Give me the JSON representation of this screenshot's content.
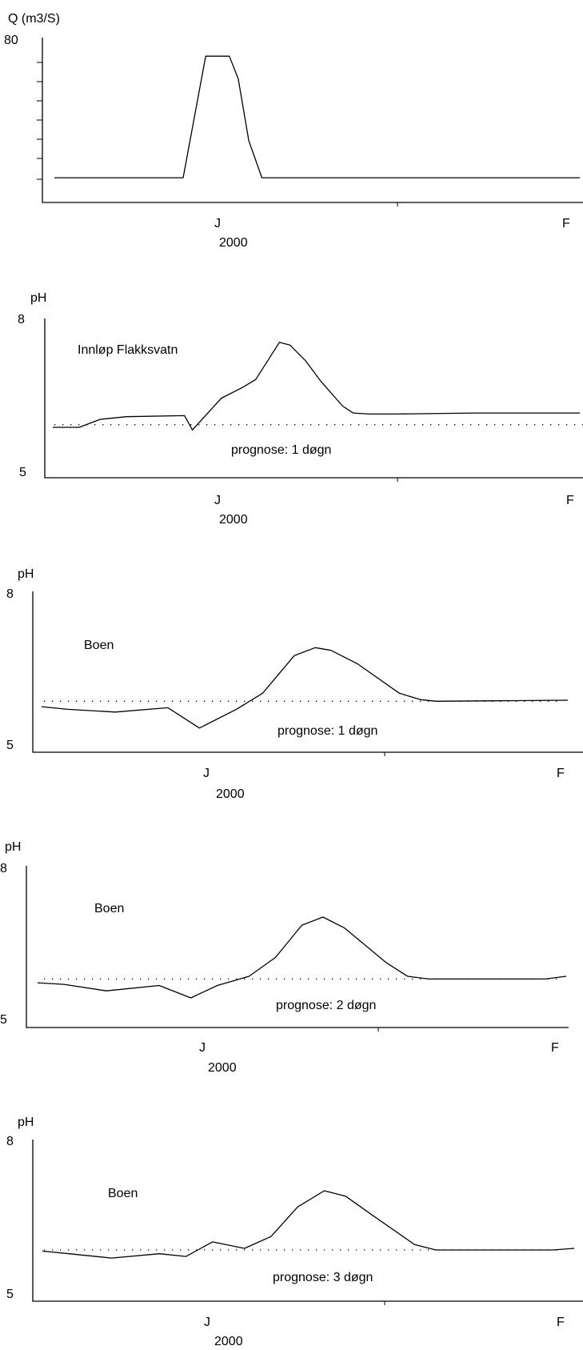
{
  "chart_data": [
    {
      "type": "line",
      "ylabel": "Q (m3/S)",
      "ytick_labels": [
        "80"
      ],
      "x_tick_labels": [
        "J",
        "F"
      ],
      "year_label": "2000",
      "series": [
        {
          "x": [
            0,
            0.245,
            0.288,
            0.333,
            0.35,
            0.37,
            0.395,
            1.0
          ],
          "values": [
            12,
            12,
            71,
            71,
            60,
            30,
            12,
            12
          ]
        }
      ],
      "ylim": [
        0,
        80
      ],
      "grid": false
    },
    {
      "type": "line",
      "ylabel": "pH",
      "ytick_labels": [
        "8",
        "5"
      ],
      "x_tick_labels": [
        "J",
        "F"
      ],
      "year_label": "2000",
      "location": "Innløp Flakksvatn",
      "forecast_label": "prognose: 1 døgn",
      "series": [
        {
          "x": [
            0,
            0.05,
            0.09,
            0.14,
            0.25,
            0.265,
            0.32,
            0.36,
            0.385,
            0.43,
            0.45,
            0.48,
            0.51,
            0.55,
            0.57,
            0.6,
            0.65,
            0.8,
            1.0
          ],
          "values": [
            5.95,
            5.95,
            6.1,
            6.15,
            6.17,
            5.9,
            6.5,
            6.7,
            6.85,
            7.55,
            7.5,
            7.2,
            6.8,
            6.35,
            6.22,
            6.2,
            6.2,
            6.22,
            6.22
          ]
        }
      ],
      "reference_level": 6.0,
      "ylim": [
        5,
        8
      ],
      "grid": false
    },
    {
      "type": "line",
      "ylabel": "pH",
      "ytick_labels": [
        "8",
        "5"
      ],
      "x_tick_labels": [
        "J",
        "F"
      ],
      "year_label": "2000",
      "location": "Boen",
      "forecast_label": "prognose: 1 døgn",
      "series": [
        {
          "x": [
            0,
            0.05,
            0.14,
            0.24,
            0.3,
            0.37,
            0.42,
            0.48,
            0.52,
            0.55,
            0.6,
            0.68,
            0.72,
            0.75,
            1.0
          ],
          "values": [
            5.85,
            5.8,
            5.75,
            5.83,
            5.45,
            5.8,
            6.1,
            6.8,
            6.95,
            6.9,
            6.65,
            6.1,
            5.98,
            5.95,
            5.97
          ]
        }
      ],
      "reference_level": 5.95,
      "ylim": [
        5,
        8
      ],
      "grid": false
    },
    {
      "type": "line",
      "ylabel": "pH",
      "ytick_labels": [
        "8",
        "5"
      ],
      "x_tick_labels": [
        "J",
        "F"
      ],
      "year_label": "2000",
      "location": "Boen",
      "forecast_label": "prognose: 2 døgn",
      "series": [
        {
          "x": [
            0,
            0.05,
            0.13,
            0.23,
            0.29,
            0.34,
            0.4,
            0.45,
            0.5,
            0.54,
            0.58,
            0.66,
            0.7,
            0.74,
            0.85,
            0.96,
            1.0
          ],
          "values": [
            5.83,
            5.8,
            5.68,
            5.78,
            5.55,
            5.78,
            5.95,
            6.3,
            6.9,
            7.05,
            6.85,
            6.2,
            5.95,
            5.9,
            5.9,
            5.9,
            5.95
          ]
        }
      ],
      "reference_level": 5.9,
      "ylim": [
        5,
        8
      ],
      "grid": false
    },
    {
      "type": "line",
      "ylabel": "pH",
      "ytick_labels": [
        "8",
        "5"
      ],
      "x_tick_labels": [
        "J",
        "F"
      ],
      "year_label": "2000",
      "location": "Boen",
      "forecast_label": "prognose: 3 døgn",
      "series": [
        {
          "x": [
            0,
            0.05,
            0.13,
            0.22,
            0.27,
            0.32,
            0.38,
            0.43,
            0.48,
            0.53,
            0.57,
            0.62,
            0.7,
            0.74,
            0.8,
            0.96,
            1.0
          ],
          "values": [
            5.93,
            5.88,
            5.8,
            5.88,
            5.83,
            6.1,
            5.98,
            6.2,
            6.75,
            7.05,
            6.95,
            6.6,
            6.05,
            5.95,
            5.95,
            5.95,
            5.98
          ]
        }
      ],
      "reference_level": 5.95,
      "ylim": [
        5,
        8
      ],
      "grid": false
    }
  ]
}
